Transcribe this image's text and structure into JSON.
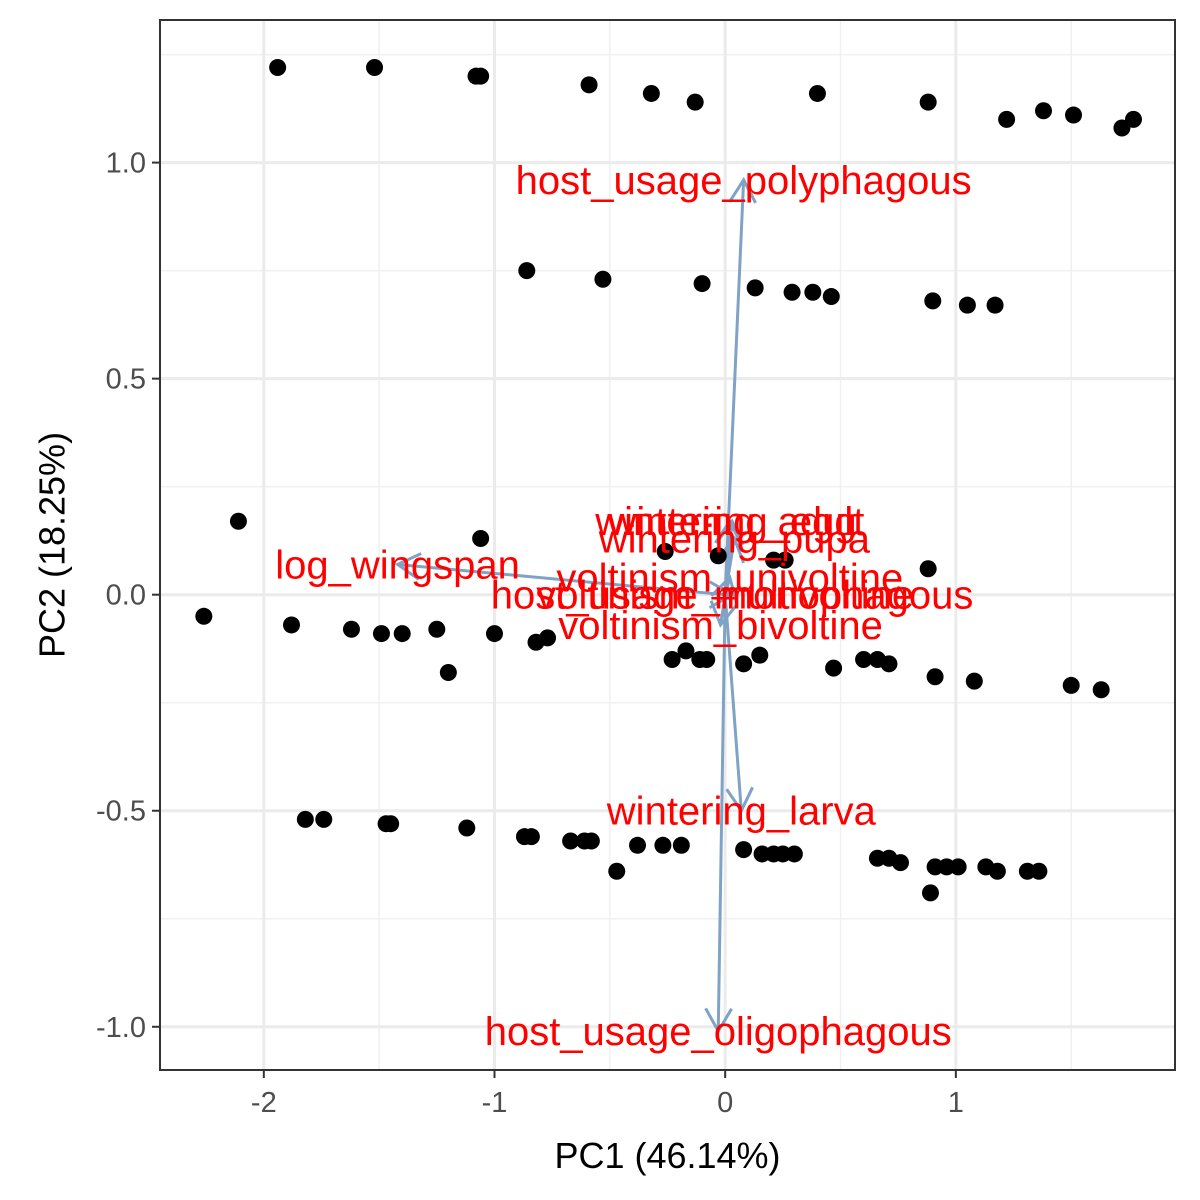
{
  "chart_data": {
    "type": "scatter",
    "xlabel": "PC1 (46.14%)",
    "ylabel": "PC2 (18.25%)",
    "xlim": [
      -2.45,
      1.95
    ],
    "ylim": [
      -1.1,
      1.33
    ],
    "grid": true,
    "x_ticks": [
      -2,
      -1,
      0,
      1
    ],
    "x_tick_labels": [
      "-2",
      "-1",
      "0",
      "1"
    ],
    "y_ticks": [
      -1.0,
      -0.5,
      0.0,
      0.5,
      1.0
    ],
    "y_tick_labels": [
      "-1.0",
      "-0.5",
      "0.0",
      "0.5",
      "1.0"
    ],
    "point_color": "#000000",
    "arrow_color": "#7fa3c6",
    "label_color": "#ff0000",
    "points": [
      [
        -1.94,
        1.22
      ],
      [
        -1.52,
        1.22
      ],
      [
        -1.08,
        1.2
      ],
      [
        -1.06,
        1.2
      ],
      [
        -0.59,
        1.18
      ],
      [
        -0.32,
        1.16
      ],
      [
        -0.13,
        1.14
      ],
      [
        0.4,
        1.16
      ],
      [
        0.88,
        1.14
      ],
      [
        1.22,
        1.1
      ],
      [
        1.38,
        1.12
      ],
      [
        1.51,
        1.11
      ],
      [
        1.72,
        1.08
      ],
      [
        1.77,
        1.1
      ],
      [
        -0.86,
        0.75
      ],
      [
        -0.53,
        0.73
      ],
      [
        -0.1,
        0.72
      ],
      [
        0.13,
        0.71
      ],
      [
        0.29,
        0.7
      ],
      [
        0.38,
        0.7
      ],
      [
        0.46,
        0.69
      ],
      [
        0.9,
        0.68
      ],
      [
        1.05,
        0.67
      ],
      [
        1.17,
        0.67
      ],
      [
        -2.11,
        0.17
      ],
      [
        -1.06,
        0.13
      ],
      [
        -0.26,
        0.1
      ],
      [
        -0.03,
        0.09
      ],
      [
        0.21,
        0.08
      ],
      [
        0.26,
        0.08
      ],
      [
        0.88,
        0.06
      ],
      [
        -2.26,
        -0.05
      ],
      [
        -1.88,
        -0.07
      ],
      [
        -1.62,
        -0.08
      ],
      [
        -1.49,
        -0.09
      ],
      [
        -1.4,
        -0.09
      ],
      [
        -1.25,
        -0.08
      ],
      [
        -1.0,
        -0.09
      ],
      [
        -0.82,
        -0.11
      ],
      [
        -0.77,
        -0.1
      ],
      [
        -1.2,
        -0.18
      ],
      [
        -0.23,
        -0.15
      ],
      [
        -0.17,
        -0.13
      ],
      [
        -0.11,
        -0.15
      ],
      [
        -0.08,
        -0.15
      ],
      [
        0.08,
        -0.16
      ],
      [
        0.15,
        -0.14
      ],
      [
        0.47,
        -0.17
      ],
      [
        0.6,
        -0.15
      ],
      [
        0.66,
        -0.15
      ],
      [
        0.71,
        -0.16
      ],
      [
        0.91,
        -0.19
      ],
      [
        1.08,
        -0.2
      ],
      [
        1.5,
        -0.21
      ],
      [
        1.63,
        -0.22
      ],
      [
        -1.82,
        -0.52
      ],
      [
        -1.74,
        -0.52
      ],
      [
        -1.47,
        -0.53
      ],
      [
        -1.45,
        -0.53
      ],
      [
        -1.12,
        -0.54
      ],
      [
        -0.87,
        -0.56
      ],
      [
        -0.84,
        -0.56
      ],
      [
        -0.67,
        -0.57
      ],
      [
        -0.61,
        -0.57
      ],
      [
        -0.58,
        -0.57
      ],
      [
        -0.38,
        -0.58
      ],
      [
        -0.27,
        -0.58
      ],
      [
        -0.19,
        -0.58
      ],
      [
        -0.47,
        -0.64
      ],
      [
        0.08,
        -0.59
      ],
      [
        0.16,
        -0.6
      ],
      [
        0.21,
        -0.6
      ],
      [
        0.25,
        -0.6
      ],
      [
        0.3,
        -0.6
      ],
      [
        0.66,
        -0.61
      ],
      [
        0.71,
        -0.61
      ],
      [
        0.76,
        -0.62
      ],
      [
        0.91,
        -0.63
      ],
      [
        0.96,
        -0.63
      ],
      [
        1.01,
        -0.63
      ],
      [
        1.13,
        -0.63
      ],
      [
        1.18,
        -0.64
      ],
      [
        1.31,
        -0.64
      ],
      [
        1.36,
        -0.64
      ],
      [
        0.89,
        -0.69
      ]
    ],
    "loadings": [
      {
        "label": "host_usage_polyphagous",
        "x": 0.08,
        "y": 0.96
      },
      {
        "label": "host_usage_oligophagous",
        "x": -0.03,
        "y": -1.01
      },
      {
        "label": "log_wingspan",
        "x": -1.42,
        "y": 0.07
      },
      {
        "label": "wintering_adult",
        "x": 0.02,
        "y": 0.17
      },
      {
        "label": "wintering_egg",
        "x": 0.03,
        "y": 0.17
      },
      {
        "label": "wintering_pupa",
        "x": 0.04,
        "y": 0.13
      },
      {
        "label": "wintering_larva",
        "x": 0.07,
        "y": -0.5
      },
      {
        "label": "voltinism_univoltine",
        "x": 0.02,
        "y": 0.04
      },
      {
        "label": "host_usage_monophagous",
        "x": 0.03,
        "y": 0.0
      },
      {
        "label": "voltinism_multivoltine",
        "x": 0.0,
        "y": 0.0
      },
      {
        "label": "voltinism_bivoltine",
        "x": -0.02,
        "y": -0.07
      }
    ]
  }
}
